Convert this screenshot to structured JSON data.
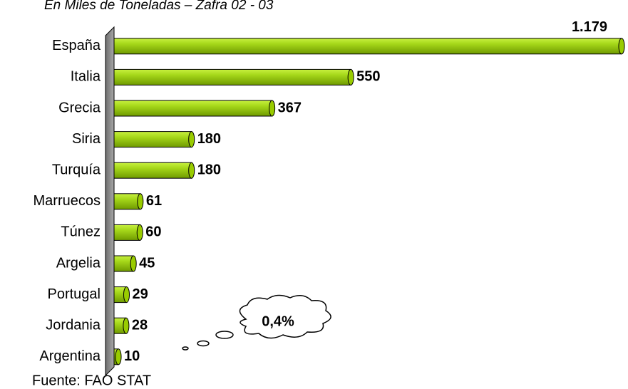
{
  "chart_data": {
    "type": "bar",
    "orientation": "horizontal",
    "title": "En Miles de Toneladas – Zafra 02 - 03",
    "categories": [
      "España",
      "Italia",
      "Grecia",
      "Siria",
      "Turquía",
      "Marruecos",
      "Túnez",
      "Argelia",
      "Portugal",
      "Jordania",
      "Argentina"
    ],
    "values": [
      1179,
      550,
      367,
      180,
      180,
      61,
      60,
      45,
      29,
      28,
      10
    ],
    "value_labels": [
      "1.179",
      "550",
      "367",
      "180",
      "180",
      "61",
      "60",
      "45",
      "29",
      "28",
      "10"
    ],
    "color": "#99cc00",
    "annotation": "0,4%",
    "source": "Fuente:  FAO STAT"
  }
}
